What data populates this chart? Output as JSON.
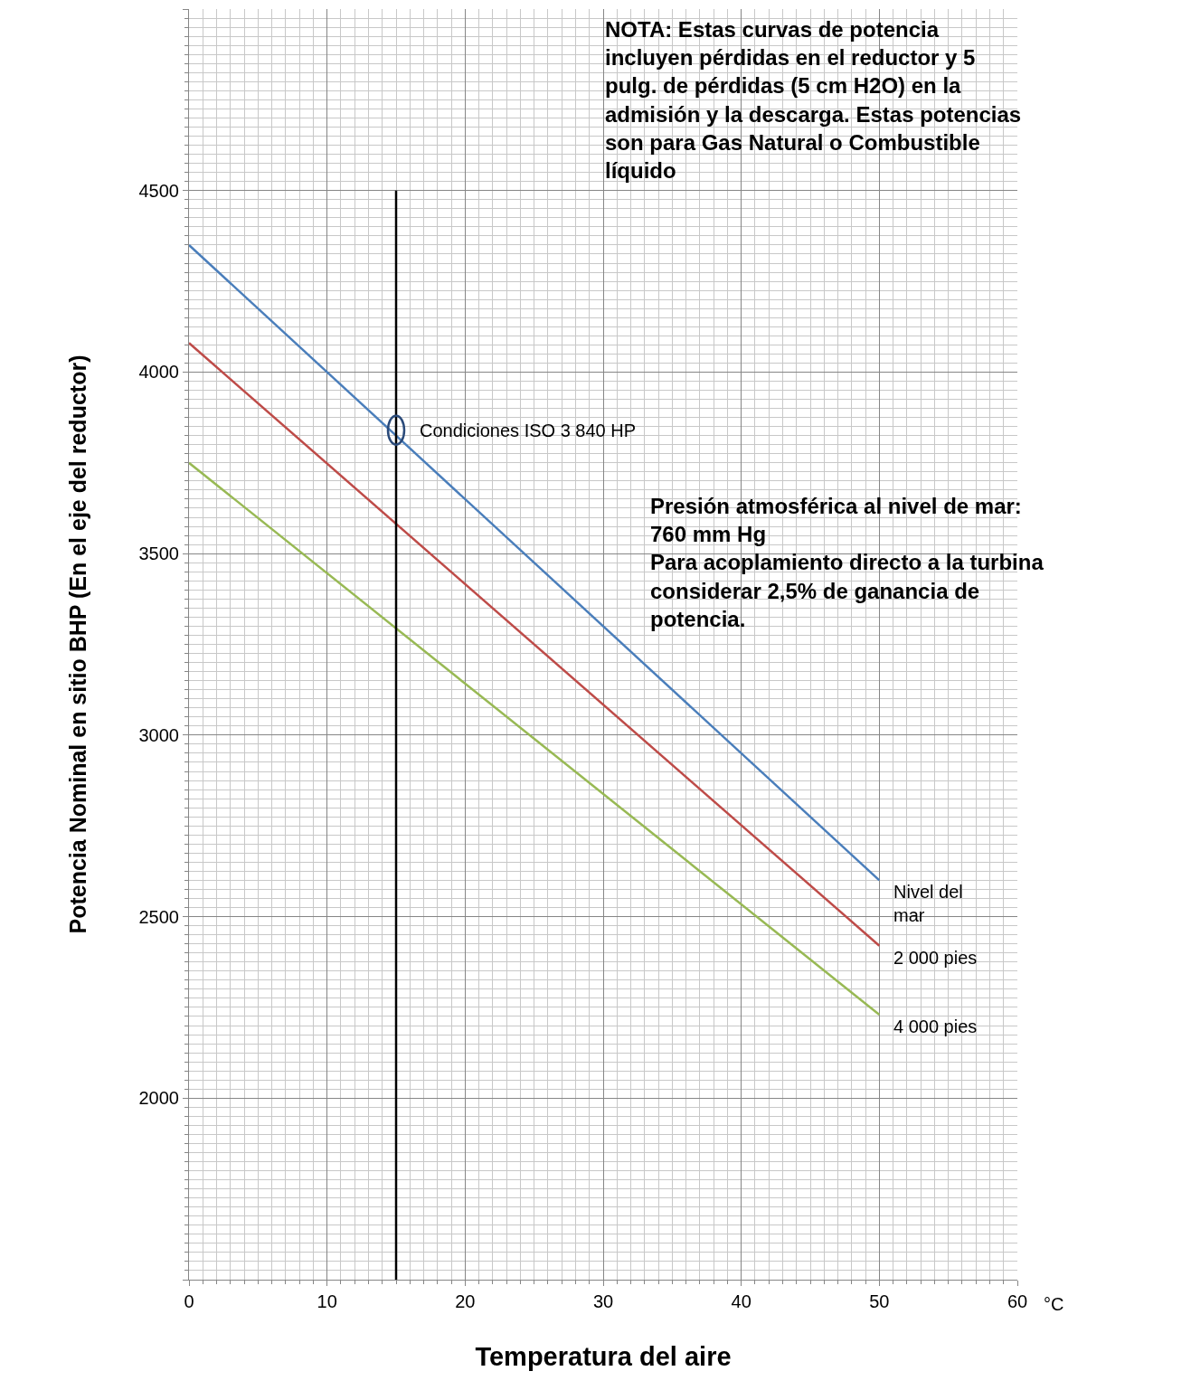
{
  "chart_data": {
    "type": "line",
    "xlabel": "Temperatura del aire",
    "ylabel": "Potencia Nominal en sitio BHP (En el eje del reductor)",
    "x": [
      0,
      50
    ],
    "series": [
      {
        "name": "Nivel del\nmar",
        "color": "#4a7ebb",
        "values": [
          4350,
          2600
        ]
      },
      {
        "name": "2 000 pies",
        "color": "#be4b48",
        "values": [
          4080,
          2420
        ]
      },
      {
        "name": "4 000 pies",
        "color": "#98b954",
        "values": [
          3750,
          2230
        ]
      },
      {
        "color": "#000000",
        "x": [
          15,
          15
        ],
        "values": [
          1500,
          4500
        ]
      }
    ],
    "xlim": [
      0,
      60
    ],
    "xticks": [
      0,
      10,
      20,
      30,
      40,
      50,
      60
    ],
    "ylim": [
      1500,
      5000
    ],
    "yticks": [
      {
        "value": 1500,
        "label": null
      },
      2000,
      2500,
      3000,
      3500,
      4000,
      4500,
      {
        "value": 5000,
        "label": null
      }
    ],
    "grid": true,
    "marker": "none",
    "line_style": "solid",
    "legend": false,
    "annotations": [
      {
        "text": "Condiciones ISO 3 840 HP",
        "x": 15,
        "y": 3840
      },
      "NOTA: Estas curvas de potencia\nincluyen pérdidas en el reductor y 5\npulg. de pérdidas (5 cm H2O) en la\nadmisión y la descarga. Estas potencias\nson para Gas Natural o Combustible\nlíquido",
      "Presión atmosférica al nivel de mar:\n760 mm Hg\nPara acoplamiento directo a la turbina\nconsiderar 2,5% de ganancia de\npotencia.",
      "°C"
    ]
  }
}
